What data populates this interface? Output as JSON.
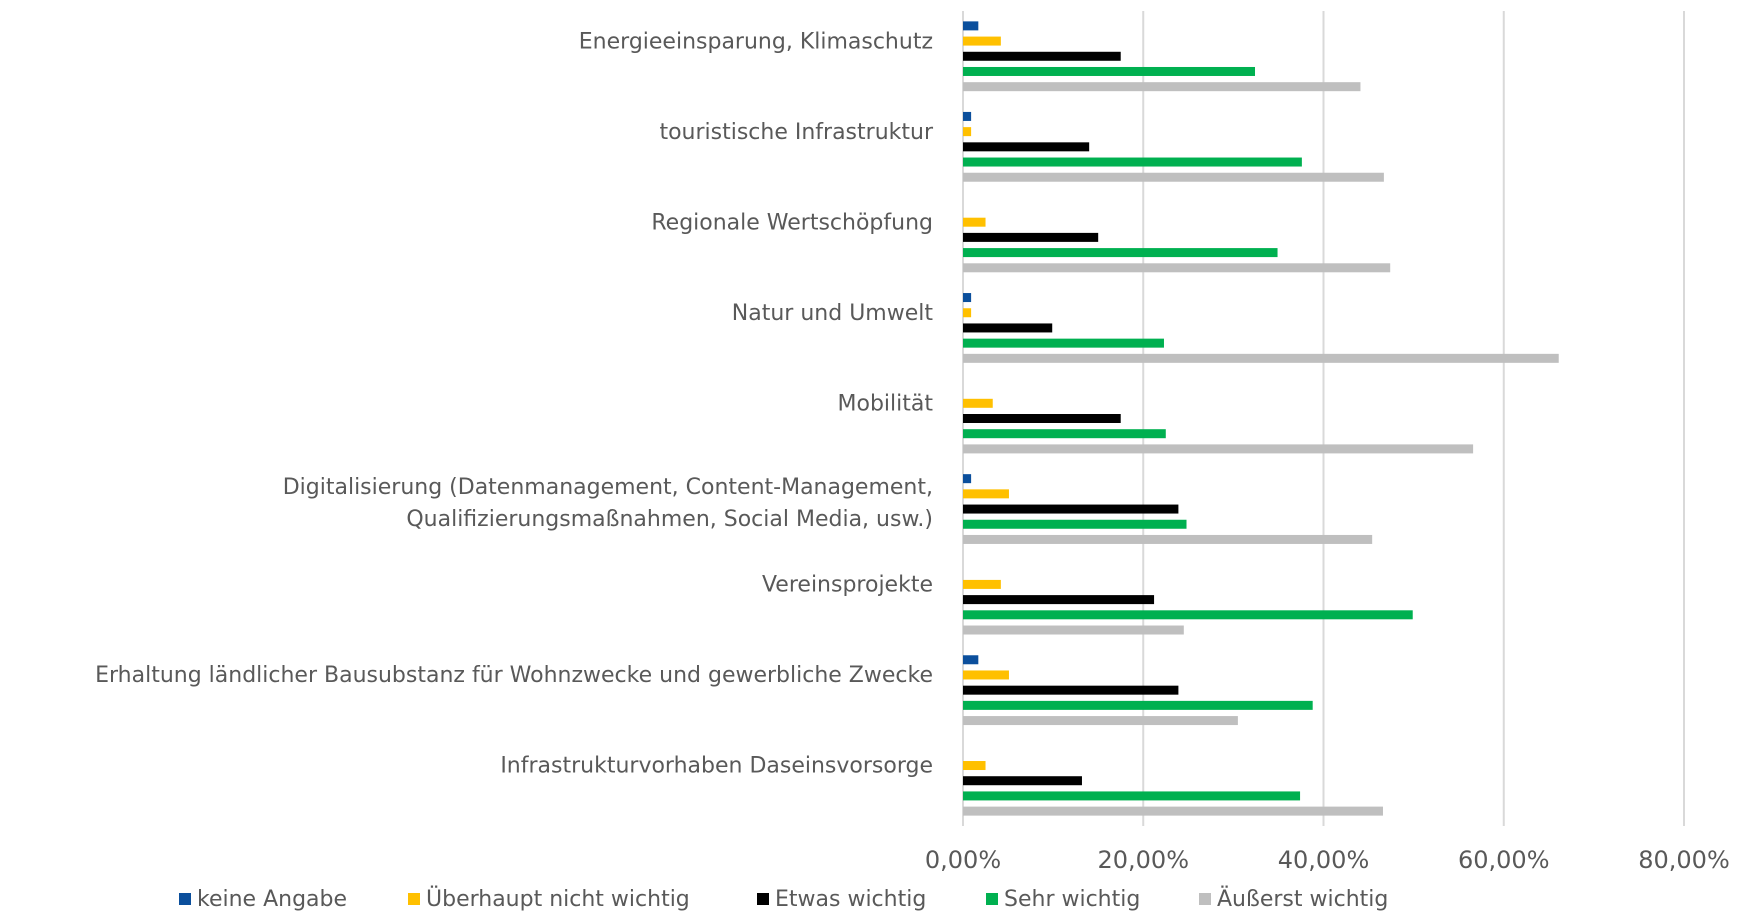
{
  "chart_data": {
    "type": "hbar",
    "categories": [
      "Energieeinsparung, Klimaschutz",
      "touristische Infrastruktur",
      "Regionale Wertschöpfung",
      "Natur und Umwelt",
      "Mobilität",
      "Digitalisierung (Datenmanagement, Content-Management,\nQualifizierungsmaßnahmen, Social Media, usw.)",
      "Vereinsprojekte",
      "Erhaltung ländlicher Bausubstanz für Wohnzwecke und gewerbliche Zwecke",
      "Infrastrukturvorhaben Daseinsvorsorge"
    ],
    "series": [
      {
        "name": "keine Angabe",
        "color": "#0b4f9c",
        "values": [
          1.7,
          0.9,
          0,
          0.9,
          0,
          0.9,
          0,
          1.7,
          0
        ]
      },
      {
        "name": "Überhaupt nicht wichtig",
        "color": "#ffc000",
        "values": [
          4.2,
          0.9,
          2.5,
          0.9,
          3.3,
          5.1,
          4.2,
          5.1,
          2.5
        ]
      },
      {
        "name": "Etwas wichtig",
        "color": "#000000",
        "values": [
          17.5,
          14.0,
          15.0,
          9.9,
          17.5,
          23.9,
          21.2,
          23.9,
          13.2
        ]
      },
      {
        "name": "Sehr wichtig",
        "color": "#00b050",
        "values": [
          32.4,
          37.6,
          34.9,
          22.3,
          22.5,
          24.8,
          49.9,
          38.8,
          37.4
        ]
      },
      {
        "name": "Äußerst wichtig",
        "color": "#bfbfbf",
        "values": [
          44.1,
          46.7,
          47.4,
          66.1,
          56.6,
          45.4,
          24.5,
          30.5,
          46.6
        ]
      }
    ],
    "xlim": [
      0,
      80
    ],
    "xticks": [
      {
        "value": 0,
        "label": "0,00%"
      },
      {
        "value": 20,
        "label": "20,00%"
      },
      {
        "value": 40,
        "label": "40,00%"
      },
      {
        "value": 60,
        "label": "60,00%"
      },
      {
        "value": 80,
        "label": "80,00%"
      }
    ],
    "grid": true,
    "legend": "bottom"
  }
}
